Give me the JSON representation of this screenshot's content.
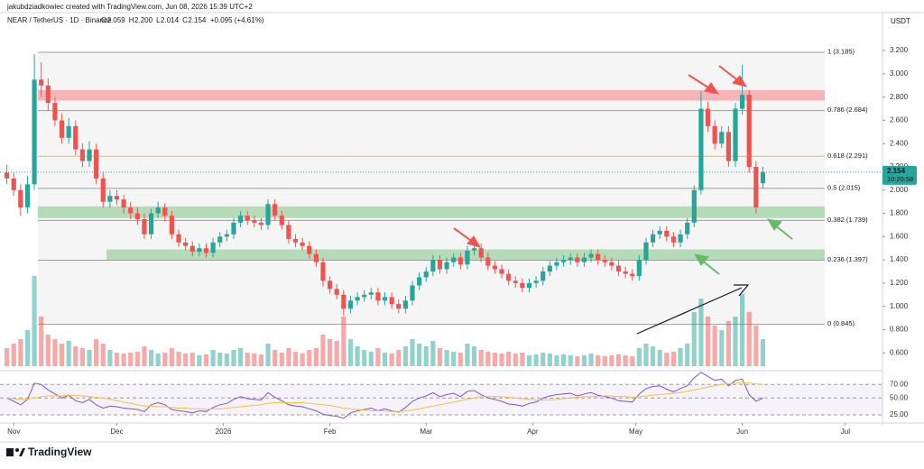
{
  "chart_data": {
    "type": "candlestick",
    "author": "jakubdziadkowiec created with TradingView.com, Jun 08, 2026 15:39 UTC+2",
    "symbol": "NEAR / TetherUS · 1D · Binance",
    "quote": [
      {
        "k": "O",
        "v": "2.059"
      },
      {
        "k": "H",
        "v": "2.200"
      },
      {
        "k": "L",
        "v": "2.014"
      },
      {
        "k": "C",
        "v": "2.154"
      },
      {
        "k": "",
        "v": "+0.095 (+4.61%)"
      }
    ],
    "currency": "USDT",
    "countdown": "10:20:58",
    "brand": "TradingView",
    "up_color": "#26a69a",
    "down_color": "#ef5350",
    "xlim": [
      -1,
      127.4
    ],
    "xticks": [
      {
        "value": 1,
        "label": "Nov"
      },
      {
        "value": 16,
        "label": "Dec"
      },
      {
        "value": 31.5,
        "label": "2026"
      },
      {
        "value": 47,
        "label": "Feb"
      },
      {
        "value": 61,
        "label": "Mar"
      },
      {
        "value": 76.5,
        "label": "Apr"
      },
      {
        "value": 91.5,
        "label": "May"
      },
      {
        "value": 107,
        "label": "Jun"
      },
      {
        "value": 122,
        "label": "Jul"
      }
    ],
    "ylim": [
      0.47,
      3.48
    ],
    "yticks": [
      {
        "value": 0.6,
        "label": "0.600"
      },
      {
        "value": 0.8,
        "label": "0.800"
      },
      {
        "value": 1.0,
        "label": "1.000"
      },
      {
        "value": 1.2,
        "label": "1.200"
      },
      {
        "value": 1.4,
        "label": "1.400"
      },
      {
        "value": 1.6,
        "label": "1.600"
      },
      {
        "value": 1.8,
        "label": "1.800"
      },
      {
        "value": 2.0,
        "label": "2.000"
      },
      {
        "value": 2.2,
        "label": "2.200"
      },
      {
        "value": 2.4,
        "label": "2.400"
      },
      {
        "value": 2.6,
        "label": "2.600"
      },
      {
        "value": 2.8,
        "label": "2.800"
      },
      {
        "value": 3.0,
        "label": "3.000"
      },
      {
        "value": 3.2,
        "label": "3.200"
      }
    ],
    "candles": [
      [
        2.15,
        2.22,
        2.05,
        2.1
      ],
      [
        2.1,
        2.15,
        1.95,
        2.0
      ],
      [
        2.0,
        2.05,
        1.78,
        1.85
      ],
      [
        1.85,
        2.12,
        1.8,
        2.05
      ],
      [
        2.05,
        3.17,
        2.0,
        2.95
      ],
      [
        2.95,
        3.1,
        2.8,
        2.9
      ],
      [
        2.9,
        2.96,
        2.68,
        2.75
      ],
      [
        2.75,
        2.8,
        2.55,
        2.6
      ],
      [
        2.6,
        2.66,
        2.4,
        2.45
      ],
      [
        2.45,
        2.62,
        2.4,
        2.55
      ],
      [
        2.55,
        2.6,
        2.3,
        2.35
      ],
      [
        2.35,
        2.4,
        2.2,
        2.25
      ],
      [
        2.25,
        2.42,
        2.2,
        2.35
      ],
      [
        2.35,
        2.4,
        2.05,
        2.1
      ],
      [
        2.1,
        2.15,
        1.85,
        1.9
      ],
      [
        1.9,
        2.0,
        1.85,
        1.95
      ],
      [
        1.95,
        2.0,
        1.87,
        1.92
      ],
      [
        1.92,
        1.96,
        1.8,
        1.85
      ],
      [
        1.85,
        1.9,
        1.75,
        1.8
      ],
      [
        1.8,
        1.85,
        1.7,
        1.75
      ],
      [
        1.75,
        1.8,
        1.58,
        1.62
      ],
      [
        1.62,
        1.84,
        1.58,
        1.8
      ],
      [
        1.8,
        1.9,
        1.76,
        1.85
      ],
      [
        1.85,
        1.89,
        1.73,
        1.78
      ],
      [
        1.78,
        1.82,
        1.58,
        1.62
      ],
      [
        1.62,
        1.66,
        1.51,
        1.55
      ],
      [
        1.55,
        1.59,
        1.48,
        1.52
      ],
      [
        1.52,
        1.56,
        1.43,
        1.47
      ],
      [
        1.47,
        1.54,
        1.43,
        1.5
      ],
      [
        1.5,
        1.54,
        1.42,
        1.46
      ],
      [
        1.46,
        1.59,
        1.42,
        1.55
      ],
      [
        1.55,
        1.64,
        1.51,
        1.6
      ],
      [
        1.6,
        1.66,
        1.56,
        1.62
      ],
      [
        1.62,
        1.76,
        1.58,
        1.72
      ],
      [
        1.72,
        1.82,
        1.68,
        1.78
      ],
      [
        1.78,
        1.82,
        1.7,
        1.74
      ],
      [
        1.74,
        1.78,
        1.68,
        1.72
      ],
      [
        1.72,
        1.76,
        1.66,
        1.7
      ],
      [
        1.7,
        1.92,
        1.66,
        1.88
      ],
      [
        1.88,
        1.92,
        1.74,
        1.78
      ],
      [
        1.78,
        1.82,
        1.66,
        1.7
      ],
      [
        1.7,
        1.74,
        1.54,
        1.58
      ],
      [
        1.58,
        1.62,
        1.51,
        1.55
      ],
      [
        1.55,
        1.59,
        1.48,
        1.52
      ],
      [
        1.52,
        1.56,
        1.41,
        1.45
      ],
      [
        1.45,
        1.49,
        1.34,
        1.38
      ],
      [
        1.38,
        1.42,
        1.17,
        1.22
      ],
      [
        1.22,
        1.26,
        1.11,
        1.15
      ],
      [
        1.15,
        1.19,
        1.06,
        1.1
      ],
      [
        1.1,
        1.14,
        0.92,
        0.98
      ],
      [
        0.98,
        1.09,
        0.94,
        1.05
      ],
      [
        1.05,
        1.12,
        1.01,
        1.08
      ],
      [
        1.08,
        1.14,
        1.04,
        1.1
      ],
      [
        1.1,
        1.16,
        1.06,
        1.12
      ],
      [
        1.12,
        1.16,
        1.01,
        1.05
      ],
      [
        1.05,
        1.12,
        1.01,
        1.08
      ],
      [
        1.08,
        1.12,
        0.98,
        1.02
      ],
      [
        1.02,
        1.06,
        0.94,
        0.98
      ],
      [
        0.98,
        1.09,
        0.94,
        1.05
      ],
      [
        1.05,
        1.22,
        1.01,
        1.18
      ],
      [
        1.18,
        1.29,
        1.14,
        1.25
      ],
      [
        1.25,
        1.34,
        1.21,
        1.3
      ],
      [
        1.3,
        1.44,
        1.26,
        1.4
      ],
      [
        1.4,
        1.44,
        1.28,
        1.32
      ],
      [
        1.32,
        1.42,
        1.28,
        1.38
      ],
      [
        1.38,
        1.46,
        1.34,
        1.42
      ],
      [
        1.42,
        1.46,
        1.32,
        1.36
      ],
      [
        1.36,
        1.52,
        1.32,
        1.48
      ],
      [
        1.48,
        1.54,
        1.44,
        1.5
      ],
      [
        1.5,
        1.54,
        1.38,
        1.42
      ],
      [
        1.42,
        1.46,
        1.31,
        1.35
      ],
      [
        1.35,
        1.39,
        1.28,
        1.32
      ],
      [
        1.32,
        1.36,
        1.24,
        1.28
      ],
      [
        1.28,
        1.32,
        1.18,
        1.22
      ],
      [
        1.22,
        1.26,
        1.16,
        1.2
      ],
      [
        1.2,
        1.24,
        1.12,
        1.16
      ],
      [
        1.16,
        1.24,
        1.12,
        1.2
      ],
      [
        1.2,
        1.26,
        1.16,
        1.22
      ],
      [
        1.22,
        1.34,
        1.18,
        1.3
      ],
      [
        1.3,
        1.39,
        1.26,
        1.35
      ],
      [
        1.35,
        1.42,
        1.31,
        1.38
      ],
      [
        1.38,
        1.44,
        1.34,
        1.4
      ],
      [
        1.4,
        1.46,
        1.36,
        1.42
      ],
      [
        1.42,
        1.46,
        1.34,
        1.38
      ],
      [
        1.38,
        1.46,
        1.34,
        1.42
      ],
      [
        1.42,
        1.49,
        1.38,
        1.45
      ],
      [
        1.45,
        1.49,
        1.36,
        1.4
      ],
      [
        1.4,
        1.44,
        1.34,
        1.38
      ],
      [
        1.38,
        1.42,
        1.31,
        1.35
      ],
      [
        1.35,
        1.39,
        1.26,
        1.3
      ],
      [
        1.3,
        1.34,
        1.24,
        1.28
      ],
      [
        1.28,
        1.32,
        1.22,
        1.26
      ],
      [
        1.26,
        1.44,
        1.22,
        1.4
      ],
      [
        1.4,
        1.59,
        1.36,
        1.55
      ],
      [
        1.55,
        1.66,
        1.51,
        1.62
      ],
      [
        1.62,
        1.69,
        1.58,
        1.65
      ],
      [
        1.65,
        1.69,
        1.56,
        1.6
      ],
      [
        1.6,
        1.64,
        1.51,
        1.55
      ],
      [
        1.55,
        1.66,
        1.51,
        1.62
      ],
      [
        1.62,
        1.76,
        1.58,
        1.72
      ],
      [
        1.72,
        2.04,
        1.68,
        2.0
      ],
      [
        2.0,
        2.85,
        1.96,
        2.7
      ],
      [
        2.7,
        2.76,
        2.5,
        2.55
      ],
      [
        2.55,
        2.6,
        2.35,
        2.4
      ],
      [
        2.4,
        2.55,
        2.36,
        2.5
      ],
      [
        2.5,
        2.55,
        2.2,
        2.25
      ],
      [
        2.25,
        2.75,
        2.2,
        2.7
      ],
      [
        2.7,
        3.08,
        2.65,
        2.82
      ],
      [
        2.82,
        2.86,
        2.15,
        2.2
      ],
      [
        2.2,
        2.25,
        1.8,
        1.85
      ],
      [
        2.059,
        2.2,
        2.014,
        2.154
      ]
    ],
    "volume": [
      20,
      25,
      30,
      40,
      100,
      55,
      35,
      30,
      25,
      28,
      22,
      20,
      18,
      30,
      25,
      18,
      15,
      14,
      15,
      16,
      22,
      18,
      14,
      15,
      20,
      16,
      14,
      15,
      12,
      13,
      18,
      15,
      14,
      18,
      20,
      15,
      14,
      13,
      25,
      18,
      15,
      20,
      16,
      14,
      18,
      20,
      35,
      30,
      28,
      55,
      30,
      22,
      18,
      16,
      20,
      15,
      14,
      18,
      22,
      30,
      25,
      22,
      28,
      20,
      18,
      16,
      15,
      25,
      22,
      18,
      16,
      15,
      14,
      16,
      14,
      15,
      12,
      13,
      15,
      14,
      12,
      13,
      12,
      11,
      12,
      14,
      12,
      11,
      12,
      13,
      12,
      11,
      20,
      25,
      22,
      18,
      15,
      16,
      20,
      25,
      60,
      75,
      55,
      45,
      40,
      50,
      55,
      80,
      60,
      45,
      30
    ],
    "fib_range": [
      4.5,
      119
    ],
    "fib_levels": [
      {
        "label": "1 (3.185)",
        "value": 3.185,
        "color": "#9e9e9e"
      },
      {
        "label": "0.786 (2.684)",
        "value": 2.684,
        "color": "#9e9e9e"
      },
      {
        "label": "0.618 (2.291)",
        "value": 2.291,
        "color": "#f6b73c"
      },
      {
        "label": "0.5 (2.015)",
        "value": 2.015,
        "color": "#9e9e9e"
      },
      {
        "label": "0.382 (1.739)",
        "value": 1.739,
        "color": "#9e9e9e"
      },
      {
        "label": "0.236 (1.397)",
        "value": 1.397,
        "color": "#9e9e9e"
      },
      {
        "label": "0 (0.845)",
        "value": 0.845,
        "color": "#9e9e9e"
      }
    ],
    "zones": [
      {
        "start": 4.5,
        "from": 2.77,
        "to": 2.86,
        "color": "#f5a9ad"
      },
      {
        "start": 4.5,
        "from": 1.76,
        "to": 1.86,
        "color": "#a8d8ab"
      },
      {
        "start": 14.5,
        "from": 1.4,
        "to": 1.49,
        "color": "#a8d8ab"
      }
    ],
    "rsi": {
      "ylim": [
        17,
        89
      ],
      "yticks": [
        {
          "value": 70,
          "label": "70.00"
        },
        {
          "value": 50,
          "label": "50.00"
        },
        {
          "value": 25,
          "label": "25.00"
        }
      ],
      "series": [
        {
          "name": "RSI",
          "color": "#7e57c2",
          "values": [
            50,
            45,
            40,
            48,
            72,
            70,
            62,
            56,
            50,
            54,
            46,
            43,
            48,
            40,
            35,
            38,
            37,
            35,
            34,
            33,
            30,
            40,
            43,
            40,
            33,
            31,
            30,
            28,
            31,
            30,
            36,
            40,
            42,
            48,
            52,
            49,
            48,
            47,
            58,
            51,
            46,
            40,
            38,
            37,
            34,
            31,
            26,
            24,
            23,
            20,
            28,
            31,
            33,
            35,
            31,
            34,
            31,
            29,
            36,
            45,
            50,
            53,
            58,
            52,
            55,
            57,
            52,
            60,
            61,
            55,
            50,
            48,
            45,
            41,
            40,
            38,
            42,
            44,
            50,
            53,
            55,
            56,
            57,
            53,
            56,
            58,
            54,
            52,
            50,
            46,
            45,
            44,
            56,
            64,
            67,
            68,
            63,
            59,
            64,
            68,
            80,
            88,
            82,
            76,
            78,
            68,
            76,
            78,
            55,
            45,
            50
          ]
        },
        {
          "name": "RSI MA",
          "color": "#f6c243",
          "values": [
            50,
            49,
            48,
            48,
            50,
            52,
            53,
            53,
            53,
            54,
            54,
            53,
            52,
            51,
            50,
            48,
            46,
            44,
            42,
            40,
            38,
            38,
            37,
            37,
            36,
            35,
            35,
            34,
            34,
            33,
            34,
            34,
            35,
            36,
            37,
            38,
            39,
            40,
            42,
            43,
            43,
            43,
            43,
            43,
            42,
            41,
            40,
            39,
            37,
            35,
            34,
            33,
            32,
            31,
            31,
            31,
            30,
            30,
            31,
            32,
            34,
            36,
            38,
            40,
            42,
            44,
            46,
            48,
            50,
            52,
            52,
            52,
            52,
            51,
            50,
            49,
            48,
            47,
            47,
            47,
            48,
            49,
            50,
            51,
            52,
            52,
            52,
            53,
            53,
            52,
            52,
            51,
            52,
            53,
            54,
            55,
            56,
            57,
            58,
            60,
            62,
            64,
            66,
            68,
            70,
            71,
            72,
            73,
            72,
            71,
            70
          ]
        }
      ]
    }
  }
}
